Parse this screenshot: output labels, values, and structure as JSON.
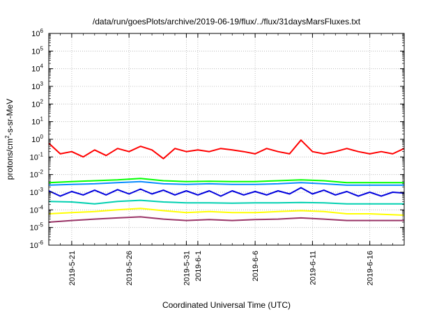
{
  "chart_data": {
    "type": "line",
    "title": "/data/run/goesPlots/archive/2019-06-19/flux/../flux/31daysMarsFluxes.txt",
    "xlabel": "Coordinated Universal Time (UTC)",
    "ylabel": "protons/cm²-s-sr-MeV",
    "y_scale": "log",
    "ylim": [
      1e-06,
      1000000.0
    ],
    "xlim": [
      "2019-05-19",
      "2019-06-19"
    ],
    "y_ticks": [
      {
        "base": "10",
        "exp": "-6"
      },
      {
        "base": "10",
        "exp": "-5"
      },
      {
        "base": "10",
        "exp": "-4"
      },
      {
        "base": "10",
        "exp": "-3"
      },
      {
        "base": "10",
        "exp": "-2"
      },
      {
        "base": "10",
        "exp": "-1"
      },
      {
        "base": "10",
        "exp": "0"
      },
      {
        "base": "10",
        "exp": "1"
      },
      {
        "base": "10",
        "exp": "2"
      },
      {
        "base": "10",
        "exp": "3"
      },
      {
        "base": "10",
        "exp": "4"
      },
      {
        "base": "10",
        "exp": "5"
      },
      {
        "base": "10",
        "exp": "6"
      }
    ],
    "x_ticks": [
      {
        "date": "2019-05-21",
        "label": "2019-5-21"
      },
      {
        "date": "2019-05-26",
        "label": "2019-5-26"
      },
      {
        "date": "2019-05-31",
        "label": "2019-5-31"
      },
      {
        "date": "2019-06-01",
        "label": "2019-6-1"
      },
      {
        "date": "2019-06-06",
        "label": "2019-6-6"
      },
      {
        "date": "2019-06-11",
        "label": "2019-6-11"
      },
      {
        "date": "2019-06-16",
        "label": "2019-6-16"
      }
    ],
    "grid": true,
    "legend": "none",
    "series": [
      {
        "color": "#ff0000",
        "x": [
          "2019-05-19",
          "2019-05-20",
          "2019-05-21",
          "2019-05-22",
          "2019-05-23",
          "2019-05-24",
          "2019-05-25",
          "2019-05-26",
          "2019-05-27",
          "2019-05-28",
          "2019-05-29",
          "2019-05-30",
          "2019-05-31",
          "2019-06-01",
          "2019-06-02",
          "2019-06-03",
          "2019-06-04",
          "2019-06-05",
          "2019-06-06",
          "2019-06-07",
          "2019-06-08",
          "2019-06-09",
          "2019-06-10",
          "2019-06-11",
          "2019-06-12",
          "2019-06-13",
          "2019-06-14",
          "2019-06-15",
          "2019-06-16",
          "2019-06-17",
          "2019-06-18",
          "2019-06-19"
        ],
        "y": [
          0.6,
          0.15,
          0.2,
          0.1,
          0.25,
          0.12,
          0.3,
          0.2,
          0.4,
          0.25,
          0.08,
          0.3,
          0.2,
          0.25,
          0.2,
          0.3,
          0.25,
          0.2,
          0.15,
          0.3,
          0.2,
          0.15,
          0.9,
          0.2,
          0.15,
          0.2,
          0.3,
          0.2,
          0.15,
          0.2,
          0.15,
          0.3
        ]
      },
      {
        "color": "#00ff00",
        "x": [
          "2019-05-19",
          "2019-05-21",
          "2019-05-23",
          "2019-05-25",
          "2019-05-27",
          "2019-05-29",
          "2019-05-31",
          "2019-06-02",
          "2019-06-04",
          "2019-06-06",
          "2019-06-08",
          "2019-06-10",
          "2019-06-12",
          "2019-06-14",
          "2019-06-16",
          "2019-06-19"
        ],
        "y": [
          0.0035,
          0.004,
          0.0045,
          0.005,
          0.006,
          0.0045,
          0.004,
          0.0042,
          0.004,
          0.004,
          0.0045,
          0.005,
          0.0045,
          0.0035,
          0.0035,
          0.0035
        ]
      },
      {
        "color": "#0a8cff",
        "x": [
          "2019-05-19",
          "2019-05-21",
          "2019-05-23",
          "2019-05-25",
          "2019-05-27",
          "2019-05-29",
          "2019-05-31",
          "2019-06-02",
          "2019-06-04",
          "2019-06-06",
          "2019-06-08",
          "2019-06-10",
          "2019-06-12",
          "2019-06-14",
          "2019-06-16",
          "2019-06-19"
        ],
        "y": [
          0.0025,
          0.0028,
          0.003,
          0.0035,
          0.004,
          0.003,
          0.0028,
          0.003,
          0.0028,
          0.0028,
          0.003,
          0.0035,
          0.003,
          0.0025,
          0.0025,
          0.0025
        ]
      },
      {
        "color": "#0000dd",
        "x": [
          "2019-05-19",
          "2019-05-20",
          "2019-05-21",
          "2019-05-22",
          "2019-05-23",
          "2019-05-24",
          "2019-05-25",
          "2019-05-26",
          "2019-05-27",
          "2019-05-28",
          "2019-05-29",
          "2019-05-30",
          "2019-05-31",
          "2019-06-01",
          "2019-06-02",
          "2019-06-03",
          "2019-06-04",
          "2019-06-05",
          "2019-06-06",
          "2019-06-07",
          "2019-06-08",
          "2019-06-09",
          "2019-06-10",
          "2019-06-11",
          "2019-06-12",
          "2019-06-13",
          "2019-06-14",
          "2019-06-15",
          "2019-06-16",
          "2019-06-17",
          "2019-06-18",
          "2019-06-19"
        ],
        "y": [
          0.0012,
          0.0006,
          0.0011,
          0.0007,
          0.0013,
          0.0007,
          0.0014,
          0.0008,
          0.0015,
          0.0008,
          0.0013,
          0.0007,
          0.0012,
          0.0007,
          0.0012,
          0.0006,
          0.0012,
          0.0007,
          0.0011,
          0.0007,
          0.0012,
          0.0008,
          0.0018,
          0.0008,
          0.0013,
          0.0007,
          0.0011,
          0.0006,
          0.001,
          0.0006,
          0.001,
          0.0009
        ]
      },
      {
        "color": "#00d0b0",
        "x": [
          "2019-05-19",
          "2019-05-21",
          "2019-05-23",
          "2019-05-25",
          "2019-05-27",
          "2019-05-29",
          "2019-05-31",
          "2019-06-02",
          "2019-06-04",
          "2019-06-06",
          "2019-06-08",
          "2019-06-10",
          "2019-06-12",
          "2019-06-14",
          "2019-06-16",
          "2019-06-19"
        ],
        "y": [
          0.0003,
          0.00028,
          0.00022,
          0.0003,
          0.00035,
          0.00028,
          0.00025,
          0.00025,
          0.00024,
          0.00025,
          0.00025,
          0.00026,
          0.00025,
          0.00022,
          0.00022,
          0.00022
        ]
      },
      {
        "color": "#ffff00",
        "x": [
          "2019-05-19",
          "2019-05-21",
          "2019-05-23",
          "2019-05-25",
          "2019-05-27",
          "2019-05-29",
          "2019-05-31",
          "2019-06-02",
          "2019-06-04",
          "2019-06-06",
          "2019-06-08",
          "2019-06-10",
          "2019-06-12",
          "2019-06-14",
          "2019-06-16",
          "2019-06-19"
        ],
        "y": [
          6e-05,
          7e-05,
          8e-05,
          0.0001,
          0.00012,
          9e-05,
          7e-05,
          8e-05,
          7e-05,
          7e-05,
          8e-05,
          9e-05,
          8e-05,
          6e-05,
          6e-05,
          5e-05
        ]
      },
      {
        "color": "#993366",
        "x": [
          "2019-05-19",
          "2019-05-21",
          "2019-05-23",
          "2019-05-25",
          "2019-05-27",
          "2019-05-29",
          "2019-05-31",
          "2019-06-02",
          "2019-06-04",
          "2019-06-06",
          "2019-06-08",
          "2019-06-10",
          "2019-06-12",
          "2019-06-14",
          "2019-06-16",
          "2019-06-19"
        ],
        "y": [
          2e-05,
          2.5e-05,
          3e-05,
          3.5e-05,
          4e-05,
          3e-05,
          2.5e-05,
          2.8e-05,
          2.5e-05,
          2.8e-05,
          3e-05,
          3.5e-05,
          3e-05,
          2.5e-05,
          2.5e-05,
          2.5e-05
        ]
      }
    ]
  }
}
